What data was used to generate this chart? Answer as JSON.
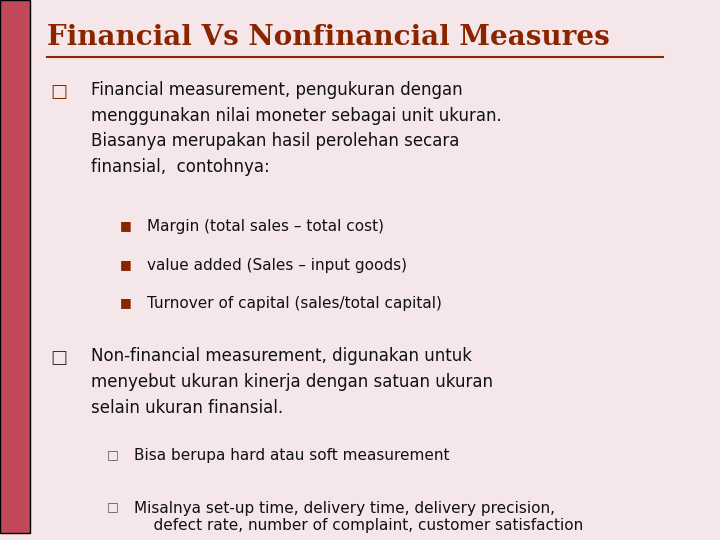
{
  "title": "Financial Vs Nonfinancial Measures",
  "title_color": "#8B2500",
  "title_fontsize": 20,
  "background_color": "#F5E6EA",
  "left_bar_color": "#C0485A",
  "bullet_color_p": "#8B2500",
  "bullet_color_q": "#333333",
  "sub_bullet_color": "#8B2500",
  "sub_bullet_color_q": "#555555",
  "text_color": "#111111",
  "p_text_lines": [
    "Financial measurement, pengukuran dengan",
    "menggunakan nilai moneter sebagai unit ukuran.",
    "Biasanya merupakan hasil perolehan secara",
    "finansial,  contohnya:"
  ],
  "p_sub_bullets": [
    "Margin (total sales – total cost)",
    "value added (Sales – input goods)",
    "Turnover of capital (sales/total capital)"
  ],
  "q_text_lines": [
    "Non-financial measurement, digunakan untuk",
    "menyebut ukuran kinerja dengan satuan ukuran",
    "selain ukuran finansial."
  ],
  "q_sub_bullets": [
    "Bisa berupa hard atau soft measurement",
    "Misalnya set-up time, delivery time, delivery precision,\n    defect rate, number of complaint, customer satisfaction"
  ],
  "title_underline_color": "#8B2500"
}
